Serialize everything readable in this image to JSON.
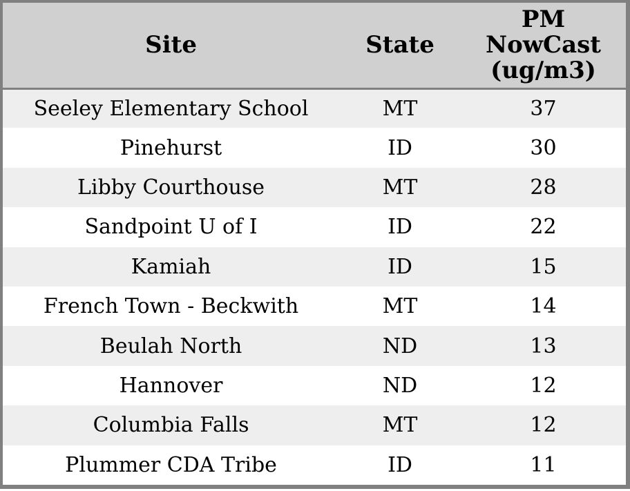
{
  "chart_data": {
    "type": "table",
    "columns": [
      {
        "id": "site",
        "label": "Site"
      },
      {
        "id": "state",
        "label": "State"
      },
      {
        "id": "pm_nowcast",
        "label": "PM NowCast (ug/m3)"
      }
    ],
    "rows": [
      {
        "site": "Seeley Elementary School",
        "state": "MT",
        "pm_nowcast": 37
      },
      {
        "site": "Pinehurst",
        "state": "ID",
        "pm_nowcast": 30
      },
      {
        "site": "Libby Courthouse",
        "state": "MT",
        "pm_nowcast": 28
      },
      {
        "site": "Sandpoint U of I",
        "state": "ID",
        "pm_nowcast": 22
      },
      {
        "site": "Kamiah",
        "state": "ID",
        "pm_nowcast": 15
      },
      {
        "site": "French Town - Beckwith",
        "state": "MT",
        "pm_nowcast": 14
      },
      {
        "site": "Beulah North",
        "state": "ND",
        "pm_nowcast": 13
      },
      {
        "site": "Hannover",
        "state": "ND",
        "pm_nowcast": 12
      },
      {
        "site": "Columbia Falls",
        "state": "MT",
        "pm_nowcast": 12
      },
      {
        "site": "Plummer CDA Tribe",
        "state": "ID",
        "pm_nowcast": 11
      }
    ],
    "layout": {
      "grid": "off",
      "row_striping": "alternating",
      "header_position": "top"
    }
  },
  "style": {
    "header_bg": "#d0d0d0",
    "row_alt_bg": "#eeeeee",
    "row_bg": "#ffffff",
    "border_color": "#808080",
    "text_color": "#000000"
  }
}
